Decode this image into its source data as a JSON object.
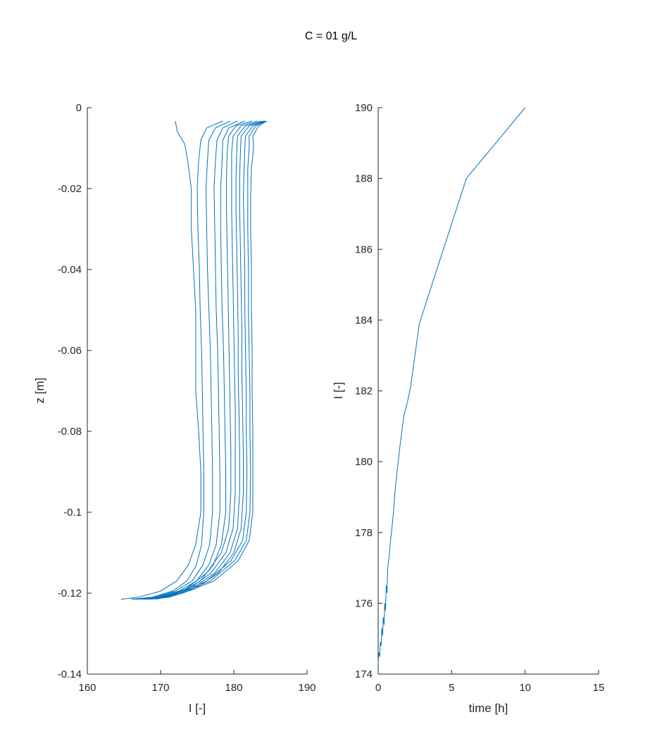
{
  "figure": {
    "title": "C = 01 g/L",
    "line_color": "#0072BD",
    "axis_color": "#262626"
  },
  "chart_data": [
    {
      "type": "line",
      "xlabel": "I [-]",
      "ylabel": "z [m]",
      "xlim": [
        160,
        190
      ],
      "ylim": [
        -0.14,
        0
      ],
      "xticks": [
        "160",
        "170",
        "180",
        "190"
      ],
      "yticks": [
        "0",
        "-0.02",
        "-0.04",
        "-0.06",
        "-0.08",
        "-0.1",
        "-0.12",
        "-0.14"
      ],
      "grid": false,
      "legend": "none",
      "series": [
        {
          "z": [
            -0.0033,
            -0.006,
            -0.009,
            -0.013,
            -0.02,
            -0.03,
            -0.04,
            -0.05,
            -0.06,
            -0.07,
            -0.08,
            -0.09,
            -0.1,
            -0.108,
            -0.113,
            -0.117,
            -0.1195,
            -0.121,
            -0.1215
          ],
          "x": [
            172.0,
            172.3,
            173.3,
            173.7,
            174.2,
            174.2,
            174.5,
            174.8,
            174.8,
            174.8,
            175.2,
            175.5,
            175.5,
            174.8,
            173.8,
            172.2,
            170.0,
            167.0,
            164.6
          ]
        },
        {
          "z": [
            -0.0033,
            -0.005,
            -0.008,
            -0.013,
            -0.02,
            -0.03,
            -0.04,
            -0.05,
            -0.06,
            -0.07,
            -0.08,
            -0.09,
            -0.1,
            -0.108,
            -0.113,
            -0.117,
            -0.1195,
            -0.121,
            -0.1215
          ],
          "x": [
            178.5,
            176.3,
            175.5,
            175.2,
            175.0,
            175.1,
            175.3,
            175.4,
            175.6,
            175.7,
            175.8,
            175.9,
            175.9,
            175.6,
            174.9,
            173.6,
            171.6,
            168.9,
            166.0
          ]
        },
        {
          "z": [
            -0.0033,
            -0.005,
            -0.008,
            -0.013,
            -0.02,
            -0.03,
            -0.04,
            -0.05,
            -0.06,
            -0.07,
            -0.08,
            -0.09,
            -0.1,
            -0.108,
            -0.113,
            -0.117,
            -0.1195,
            -0.121,
            -0.1215
          ],
          "x": [
            179.5,
            177.5,
            176.6,
            176.4,
            176.2,
            176.3,
            176.4,
            176.6,
            176.8,
            176.9,
            177.0,
            177.1,
            177.1,
            176.7,
            175.8,
            174.3,
            172.0,
            169.2,
            166.3
          ]
        },
        {
          "z": [
            -0.0033,
            -0.005,
            -0.008,
            -0.013,
            -0.02,
            -0.03,
            -0.04,
            -0.05,
            -0.06,
            -0.07,
            -0.08,
            -0.09,
            -0.1,
            -0.108,
            -0.113,
            -0.117,
            -0.1195,
            -0.121,
            -0.1215
          ],
          "x": [
            180.5,
            178.5,
            177.7,
            177.5,
            177.3,
            177.4,
            177.5,
            177.6,
            177.8,
            177.9,
            178.0,
            178.1,
            178.1,
            177.6,
            176.6,
            174.9,
            172.5,
            169.5,
            166.6
          ]
        },
        {
          "z": [
            -0.0033,
            -0.005,
            -0.008,
            -0.013,
            -0.02,
            -0.03,
            -0.04,
            -0.05,
            -0.06,
            -0.07,
            -0.08,
            -0.09,
            -0.1,
            -0.108,
            -0.113,
            -0.117,
            -0.1195,
            -0.121,
            -0.1215
          ],
          "x": [
            181.5,
            179.3,
            178.5,
            178.4,
            178.2,
            178.2,
            178.3,
            178.4,
            178.6,
            178.7,
            178.8,
            178.9,
            178.9,
            178.3,
            177.2,
            175.4,
            172.9,
            169.8,
            166.9
          ]
        },
        {
          "z": [
            -0.0033,
            -0.0045,
            -0.007,
            -0.011,
            -0.017,
            -0.025,
            -0.035,
            -0.045,
            -0.055,
            -0.065,
            -0.075,
            -0.085,
            -0.095,
            -0.104,
            -0.11,
            -0.115,
            -0.119,
            -0.121,
            -0.1215
          ],
          "x": [
            182.5,
            180.3,
            179.3,
            179.1,
            179.0,
            179.0,
            179.1,
            179.2,
            179.3,
            179.4,
            179.5,
            179.6,
            179.6,
            179.3,
            178.3,
            176.3,
            173.4,
            170.2,
            167.3
          ]
        },
        {
          "z": [
            -0.0033,
            -0.0045,
            -0.007,
            -0.011,
            -0.017,
            -0.025,
            -0.035,
            -0.045,
            -0.055,
            -0.065,
            -0.075,
            -0.085,
            -0.095,
            -0.104,
            -0.11,
            -0.115,
            -0.119,
            -0.121,
            -0.1215
          ],
          "x": [
            183.2,
            181.0,
            179.9,
            179.7,
            179.7,
            179.7,
            179.8,
            179.9,
            180.0,
            180.1,
            180.2,
            180.2,
            180.2,
            179.9,
            178.9,
            176.9,
            173.8,
            170.5,
            167.7
          ]
        },
        {
          "z": [
            -0.0033,
            -0.0045,
            -0.007,
            -0.011,
            -0.017,
            -0.025,
            -0.035,
            -0.045,
            -0.055,
            -0.065,
            -0.075,
            -0.085,
            -0.095,
            -0.104,
            -0.11,
            -0.115,
            -0.119,
            -0.121,
            -0.1215
          ],
          "x": [
            183.8,
            181.6,
            180.5,
            180.4,
            180.3,
            180.3,
            180.4,
            180.5,
            180.6,
            180.6,
            180.7,
            180.8,
            180.8,
            180.5,
            179.5,
            177.4,
            174.2,
            170.9,
            168.0
          ]
        },
        {
          "z": [
            -0.0033,
            -0.0045,
            -0.007,
            -0.011,
            -0.017,
            -0.025,
            -0.035,
            -0.045,
            -0.055,
            -0.065,
            -0.075,
            -0.085,
            -0.095,
            -0.104,
            -0.11,
            -0.115,
            -0.119,
            -0.121,
            -0.1215
          ],
          "x": [
            184.1,
            182.1,
            181.0,
            180.9,
            180.8,
            180.8,
            180.9,
            181.0,
            181.1,
            181.1,
            181.2,
            181.3,
            181.3,
            181.0,
            180.0,
            177.9,
            174.6,
            171.2,
            168.3
          ]
        },
        {
          "z": [
            -0.0033,
            -0.0045,
            -0.007,
            -0.01,
            -0.015,
            -0.022,
            -0.03,
            -0.04,
            -0.05,
            -0.06,
            -0.07,
            -0.08,
            -0.09,
            -0.1,
            -0.107,
            -0.112,
            -0.117,
            -0.12,
            -0.1215
          ],
          "x": [
            184.3,
            182.6,
            181.6,
            181.5,
            181.4,
            181.3,
            181.4,
            181.5,
            181.5,
            181.6,
            181.7,
            181.7,
            181.8,
            181.7,
            181.2,
            179.6,
            176.3,
            172.2,
            168.7
          ]
        },
        {
          "z": [
            -0.0033,
            -0.0045,
            -0.007,
            -0.01,
            -0.015,
            -0.022,
            -0.03,
            -0.04,
            -0.05,
            -0.06,
            -0.07,
            -0.08,
            -0.09,
            -0.1,
            -0.107,
            -0.112,
            -0.117,
            -0.12,
            -0.1215
          ],
          "x": [
            184.4,
            183.0,
            182.1,
            182.1,
            181.9,
            181.9,
            181.9,
            182.0,
            182.0,
            182.1,
            182.2,
            182.2,
            182.3,
            182.2,
            181.7,
            180.1,
            176.8,
            172.6,
            169.0
          ]
        },
        {
          "z": [
            -0.0033,
            -0.0045,
            -0.007,
            -0.01,
            -0.015,
            -0.022,
            -0.03,
            -0.04,
            -0.05,
            -0.06,
            -0.07,
            -0.08,
            -0.09,
            -0.1,
            -0.107,
            -0.112,
            -0.117,
            -0.12,
            -0.1215
          ],
          "x": [
            184.5,
            183.4,
            182.6,
            182.7,
            182.4,
            182.3,
            182.3,
            182.4,
            182.4,
            182.5,
            182.5,
            182.6,
            182.6,
            182.6,
            182.1,
            180.6,
            177.3,
            173.0,
            169.4
          ]
        }
      ]
    },
    {
      "type": "line",
      "xlabel": "time [h]",
      "ylabel": "I [-]",
      "xlim": [
        0,
        15
      ],
      "ylim": [
        174,
        190
      ],
      "xticks": [
        "0",
        "5",
        "10",
        "15"
      ],
      "yticks": [
        "190",
        "188",
        "186",
        "184",
        "182",
        "180",
        "178",
        "176",
        "174"
      ],
      "grid": false,
      "legend": "none",
      "series": [
        {
          "x": [
            0.0,
            0.05,
            0.1,
            0.15,
            0.2,
            0.25,
            0.3,
            0.35,
            0.4,
            0.45,
            0.5,
            0.55,
            0.6,
            0.65,
            0.7,
            0.75,
            0.8,
            0.85,
            0.9,
            1.0,
            1.2,
            1.5,
            1.75,
            2.0,
            2.2,
            2.5,
            2.8,
            6.0,
            10.0
          ],
          "y": [
            174.3,
            174.6,
            174.5,
            174.9,
            174.8,
            175.3,
            175.1,
            175.6,
            175.4,
            176.0,
            175.8,
            176.5,
            176.3,
            177.0,
            177.2,
            177.3,
            177.6,
            177.8,
            178.0,
            178.4,
            179.4,
            180.5,
            181.3,
            181.7,
            182.1,
            183.0,
            183.9,
            188.0,
            190.0
          ]
        }
      ]
    }
  ]
}
